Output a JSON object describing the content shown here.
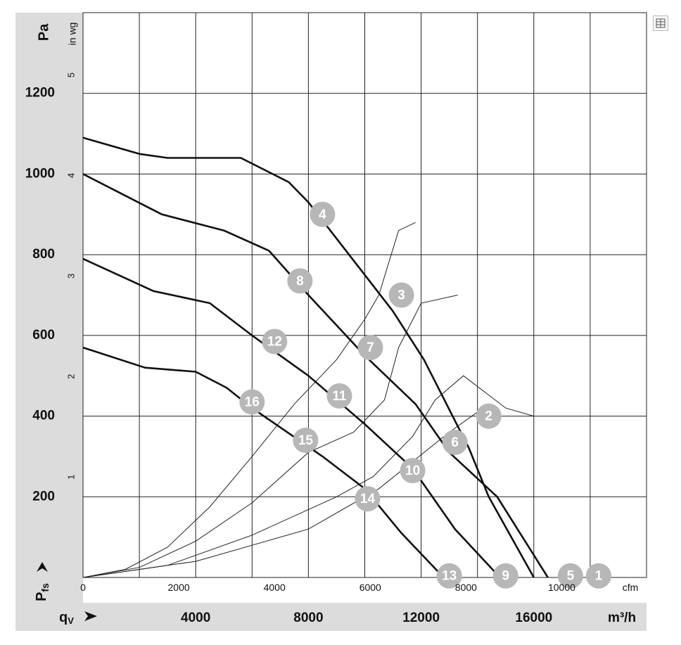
{
  "chart_data": {
    "type": "line",
    "y_axis_primary": {
      "label_unit": "Pa",
      "ticks": [
        200,
        400,
        600,
        800,
        1000,
        1200
      ],
      "range": [
        0,
        1400
      ]
    },
    "y_axis_secondary": {
      "label_unit": "in wg",
      "ticks": [
        1,
        2,
        3,
        4,
        5
      ]
    },
    "y_axis_symbol": {
      "main": "P",
      "sub": "fs"
    },
    "x_axis_primary": {
      "label_unit": "m³/h",
      "ticks": [
        4000,
        8000,
        12000,
        16000
      ],
      "range": [
        0,
        20000
      ]
    },
    "x_axis_secondary": {
      "label_unit": "cfm",
      "ticks": [
        "0",
        "2000",
        "4000",
        "6000",
        "8000",
        "10000"
      ]
    },
    "x_axis_symbol": {
      "main": "q",
      "sub": "V"
    },
    "grid": true,
    "fan_curves": [
      {
        "points": [
          [
            0,
            1090
          ],
          [
            2000,
            1050
          ],
          [
            3000,
            1040
          ],
          [
            5600,
            1040
          ],
          [
            7300,
            980
          ],
          [
            8000,
            930
          ],
          [
            9000,
            840
          ],
          [
            10000,
            750
          ],
          [
            11000,
            660
          ],
          [
            12100,
            540
          ],
          [
            13700,
            320
          ],
          [
            14400,
            200
          ],
          [
            16000,
            0
          ]
        ]
      },
      {
        "points": [
          [
            0,
            1000
          ],
          [
            2800,
            900
          ],
          [
            5000,
            860
          ],
          [
            6600,
            810
          ],
          [
            8000,
            700
          ],
          [
            10000,
            550
          ],
          [
            11800,
            430
          ],
          [
            13000,
            310
          ],
          [
            14700,
            200
          ],
          [
            16500,
            0
          ]
        ]
      },
      {
        "points": [
          [
            0,
            790
          ],
          [
            2500,
            710
          ],
          [
            4500,
            680
          ],
          [
            6000,
            600
          ],
          [
            8000,
            500
          ],
          [
            10000,
            380
          ],
          [
            11700,
            270
          ],
          [
            13200,
            120
          ],
          [
            14800,
            0
          ]
        ]
      },
      {
        "points": [
          [
            0,
            570
          ],
          [
            2200,
            520
          ],
          [
            4000,
            510
          ],
          [
            5100,
            470
          ],
          [
            6000,
            420
          ],
          [
            8500,
            300
          ],
          [
            10000,
            220
          ],
          [
            11300,
            110
          ],
          [
            12800,
            0
          ]
        ]
      }
    ],
    "system_curves": [
      {
        "points": [
          [
            0,
            0
          ],
          [
            1500,
            20
          ],
          [
            3000,
            75
          ],
          [
            4500,
            175
          ],
          [
            6000,
            300
          ],
          [
            7500,
            430
          ],
          [
            9000,
            540
          ],
          [
            10000,
            640
          ],
          [
            10500,
            700
          ],
          [
            11200,
            860
          ],
          [
            11800,
            880
          ]
        ]
      },
      {
        "points": [
          [
            0,
            0
          ],
          [
            2000,
            25
          ],
          [
            4000,
            90
          ],
          [
            6000,
            185
          ],
          [
            8000,
            310
          ],
          [
            9600,
            360
          ],
          [
            10700,
            440
          ],
          [
            11200,
            570
          ],
          [
            12000,
            680
          ],
          [
            13300,
            700
          ]
        ]
      },
      {
        "points": [
          [
            0,
            0
          ],
          [
            3000,
            30
          ],
          [
            6000,
            105
          ],
          [
            9000,
            200
          ],
          [
            10300,
            250
          ],
          [
            11700,
            350
          ],
          [
            12500,
            440
          ],
          [
            13500,
            500
          ],
          [
            15000,
            420
          ],
          [
            16000,
            400
          ]
        ]
      },
      {
        "points": [
          [
            0,
            0
          ],
          [
            4000,
            40
          ],
          [
            8000,
            120
          ],
          [
            10000,
            200
          ],
          [
            10500,
            220
          ],
          [
            13000,
            360
          ],
          [
            14000,
            410
          ]
        ]
      }
    ],
    "operating_points": [
      {
        "label": "1",
        "x": 18300,
        "y": 4
      },
      {
        "label": "2",
        "x": 14400,
        "y": 400
      },
      {
        "label": "3",
        "x": 11300,
        "y": 700
      },
      {
        "label": "4",
        "x": 8500,
        "y": 900
      },
      {
        "label": "5",
        "x": 17300,
        "y": 4
      },
      {
        "label": "6",
        "x": 13200,
        "y": 335
      },
      {
        "label": "7",
        "x": 10200,
        "y": 570
      },
      {
        "label": "8",
        "x": 7700,
        "y": 735
      },
      {
        "label": "9",
        "x": 15000,
        "y": 4
      },
      {
        "label": "10",
        "x": 11700,
        "y": 265
      },
      {
        "label": "11",
        "x": 9100,
        "y": 450
      },
      {
        "label": "12",
        "x": 6800,
        "y": 585
      },
      {
        "label": "13",
        "x": 13000,
        "y": 4
      },
      {
        "label": "14",
        "x": 10100,
        "y": 195
      },
      {
        "label": "15",
        "x": 7900,
        "y": 340
      },
      {
        "label": "16",
        "x": 6000,
        "y": 435
      }
    ]
  }
}
